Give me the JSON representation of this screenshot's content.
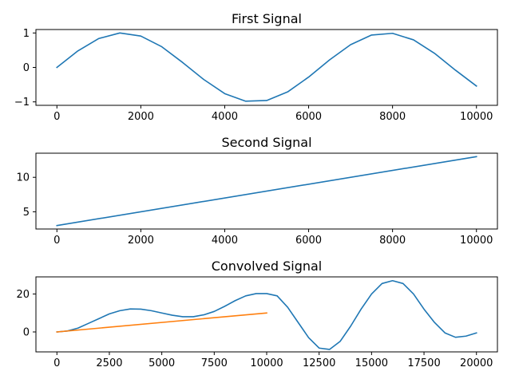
{
  "chart_data": [
    {
      "type": "line",
      "title": "First Signal",
      "xlabel": "",
      "ylabel": "",
      "xlim": [
        -500,
        10500
      ],
      "ylim": [
        -1.1,
        1.1
      ],
      "xticks": [
        0,
        2000,
        4000,
        6000,
        8000,
        10000
      ],
      "xtick_labels": [
        "0",
        "2000",
        "4000",
        "6000",
        "8000",
        "10000"
      ],
      "yticks": [
        -1,
        0,
        1
      ],
      "ytick_labels": [
        "−1",
        "0",
        "1"
      ],
      "grid": false,
      "series": [
        {
          "color": "#1f77b4",
          "x": [
            0,
            500,
            1000,
            1500,
            2000,
            2500,
            3000,
            3500,
            4000,
            4500,
            5000,
            5500,
            6000,
            6500,
            7000,
            7500,
            8000,
            8500,
            9000,
            9500,
            10000
          ],
          "y": [
            0,
            0.48,
            0.84,
            1.0,
            0.91,
            0.6,
            0.14,
            -0.35,
            -0.76,
            -0.98,
            -0.96,
            -0.71,
            -0.28,
            0.22,
            0.66,
            0.94,
            0.99,
            0.8,
            0.41,
            -0.08,
            -0.54
          ]
        }
      ]
    },
    {
      "type": "line",
      "title": "Second Signal",
      "xlabel": "",
      "ylabel": "",
      "xlim": [
        -500,
        10500
      ],
      "ylim": [
        2.5,
        13.5
      ],
      "xticks": [
        0,
        2000,
        4000,
        6000,
        8000,
        10000
      ],
      "xtick_labels": [
        "0",
        "2000",
        "4000",
        "6000",
        "8000",
        "10000"
      ],
      "yticks": [
        5,
        10
      ],
      "ytick_labels": [
        "5",
        "10"
      ],
      "grid": false,
      "series": [
        {
          "color": "#1f77b4",
          "x": [
            0,
            10000
          ],
          "y": [
            3,
            13
          ]
        }
      ]
    },
    {
      "type": "line",
      "title": "Convolved Signal",
      "xlabel": "",
      "ylabel": "",
      "xlim": [
        -1000,
        21000
      ],
      "ylim": [
        -10.5,
        29
      ],
      "xticks": [
        0,
        2500,
        5000,
        7500,
        10000,
        12500,
        15000,
        17500,
        20000
      ],
      "xtick_labels": [
        "0",
        "2500",
        "5000",
        "7500",
        "10000",
        "12500",
        "15000",
        "17500",
        "20000"
      ],
      "yticks": [
        0,
        20
      ],
      "ytick_labels": [
        "0",
        "20"
      ],
      "grid": false,
      "series": [
        {
          "color": "#1f77b4",
          "x": [
            0,
            500,
            1000,
            1500,
            2000,
            2500,
            3000,
            3500,
            4000,
            4500,
            5000,
            5500,
            6000,
            6500,
            7000,
            7500,
            8000,
            8500,
            9000,
            9500,
            10000,
            10500,
            11000,
            11500,
            12000,
            12500,
            13000,
            13500,
            14000,
            14500,
            15000,
            15500,
            16000,
            16500,
            17000,
            17500,
            18000,
            18500,
            19000,
            19500,
            20000
          ],
          "y": [
            0,
            0.5,
            2,
            4.5,
            7,
            9.5,
            11.2,
            12.1,
            12,
            11.2,
            10,
            8.8,
            8,
            8,
            9,
            10.8,
            13.5,
            16.5,
            19,
            20.2,
            20.2,
            19,
            13,
            5,
            -3,
            -8.5,
            -9.2,
            -5,
            3,
            12,
            20,
            25.5,
            27,
            25.5,
            20,
            12,
            5,
            -0.5,
            -2.8,
            -2.2,
            -0.5
          ]
        },
        {
          "color": "#ff7f0e",
          "x": [
            0,
            10000
          ],
          "y": [
            0,
            10
          ]
        }
      ]
    }
  ]
}
